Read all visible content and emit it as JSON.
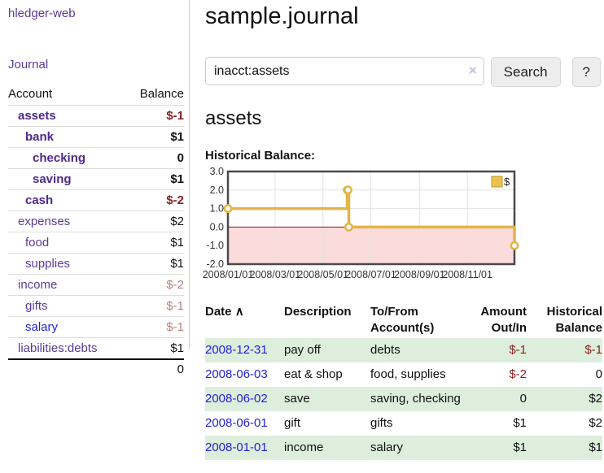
{
  "sidebar": {
    "app_title": "hledger-web",
    "journal_label": "Journal",
    "accounts": {
      "header_account": "Account",
      "header_balance": "Balance",
      "rows": [
        {
          "name": "assets",
          "balance": "$-1",
          "depth": 1,
          "bold": true,
          "balance_style": "neg-strong",
          "link_style": ""
        },
        {
          "name": "bank",
          "balance": "$1",
          "depth": 2,
          "bold": true,
          "balance_style": "",
          "link_style": ""
        },
        {
          "name": "checking",
          "balance": "0",
          "depth": 3,
          "bold": true,
          "balance_style": "",
          "link_style": ""
        },
        {
          "name": "saving",
          "balance": "$1",
          "depth": 3,
          "bold": true,
          "balance_style": "",
          "link_style": ""
        },
        {
          "name": "cash",
          "balance": "$-2",
          "depth": 2,
          "bold": true,
          "balance_style": "neg-strong",
          "link_style": ""
        },
        {
          "name": "expenses",
          "balance": "$2",
          "depth": 1,
          "bold": false,
          "balance_style": "",
          "link_style": ""
        },
        {
          "name": "food",
          "balance": "$1",
          "depth": 2,
          "bold": false,
          "balance_style": "",
          "link_style": ""
        },
        {
          "name": "supplies",
          "balance": "$1",
          "depth": 2,
          "bold": false,
          "balance_style": "",
          "link_style": ""
        },
        {
          "name": "income",
          "balance": "$-2",
          "depth": 1,
          "bold": false,
          "balance_style": "neg-muted",
          "link_style": ""
        },
        {
          "name": "gifts",
          "balance": "$-1",
          "depth": 2,
          "bold": false,
          "balance_style": "neg-muted",
          "link_style": ""
        },
        {
          "name": "salary",
          "balance": "$-1",
          "depth": 2,
          "bold": false,
          "balance_style": "neg-muted",
          "link_style": "blue"
        },
        {
          "name": "liabilities:debts",
          "balance": "$1",
          "depth": 1,
          "bold": false,
          "balance_style": "",
          "link_style": ""
        }
      ],
      "total": "0"
    }
  },
  "main": {
    "title": "sample.journal",
    "search": {
      "value": "inacct:assets",
      "clear_icon": "×",
      "search_button": "Search",
      "help_button": "?"
    },
    "account_heading": "assets",
    "section_label": "Historical Balance:"
  },
  "chart_data": {
    "type": "line",
    "step": true,
    "title": "Historical Balance",
    "series": [
      {
        "name": "$",
        "color": "#e2b545",
        "points": [
          [
            "2008/01/01",
            1
          ],
          [
            "2008/06/01",
            2
          ],
          [
            "2008/06/02",
            2
          ],
          [
            "2008/06/03",
            0
          ],
          [
            "2008/12/31",
            -1
          ]
        ]
      }
    ],
    "x_ticks": [
      "2008/01/01",
      "2008/03/01",
      "2008/05/01",
      "2008/07/01",
      "2008/09/01",
      "2008/11/01"
    ],
    "y_ticks": [
      3.0,
      2.0,
      1.0,
      0.0,
      -1.0,
      -2.0
    ],
    "xlim": [
      "2008/01/01",
      "2008/12/31"
    ],
    "ylim": [
      -2,
      3
    ],
    "legend": "$",
    "legend_position": "top-right",
    "grid": true,
    "negative_region_fill": "#fbdbdb",
    "zero_line_color": "#8f1414",
    "border_color": "#4a4a4a",
    "grid_color": "#e3e3e3"
  },
  "register": {
    "headers": {
      "date": "Date",
      "sort_icon": "∧",
      "description": "Description",
      "accounts": "To/From Account(s)",
      "amount": "Amount Out/In",
      "balance": "Historical Balance"
    },
    "rows": [
      {
        "date": "2008-12-31",
        "description": "pay off",
        "accounts": "debts",
        "amount": "$-1",
        "amount_neg": true,
        "balance": "$-1",
        "balance_neg": true
      },
      {
        "date": "2008-06-03",
        "description": "eat & shop",
        "accounts": "food, supplies",
        "amount": "$-2",
        "amount_neg": true,
        "balance": "0",
        "balance_neg": false
      },
      {
        "date": "2008-06-02",
        "description": "save",
        "accounts": "saving, checking",
        "amount": "0",
        "amount_neg": false,
        "balance": "$2",
        "balance_neg": false
      },
      {
        "date": "2008-06-01",
        "description": "gift",
        "accounts": "gifts",
        "amount": "$1",
        "amount_neg": false,
        "balance": "$2",
        "balance_neg": false
      },
      {
        "date": "2008-01-01",
        "description": "income",
        "accounts": "salary",
        "amount": "$1",
        "amount_neg": false,
        "balance": "$1",
        "balance_neg": false
      }
    ]
  }
}
